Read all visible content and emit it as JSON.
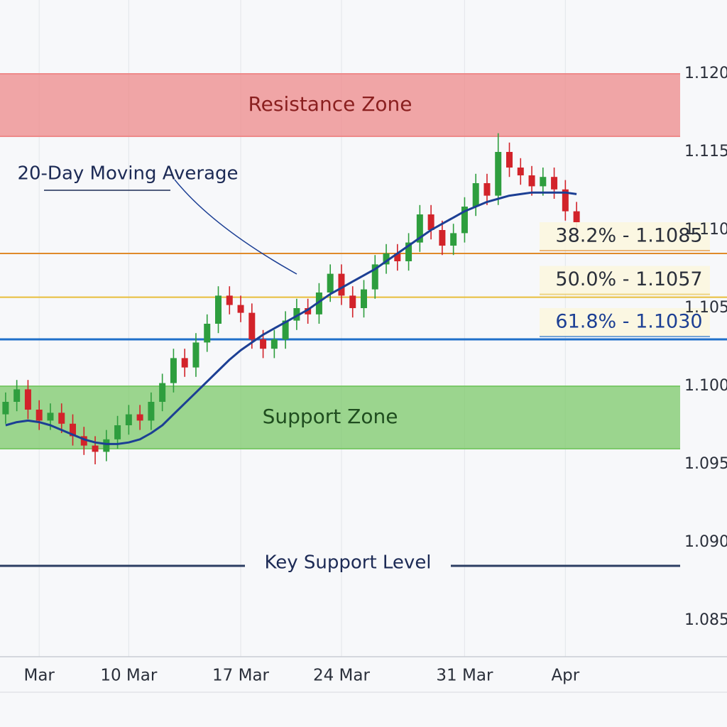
{
  "chart_data": {
    "type": "candlestick",
    "categories": [
      null,
      null,
      null,
      "Mar",
      null,
      null,
      null,
      null,
      null,
      null,
      null,
      "10 Mar",
      null,
      null,
      null,
      null,
      null,
      null,
      null,
      null,
      null,
      "17 Mar",
      null,
      null,
      null,
      null,
      null,
      null,
      null,
      null,
      "24 Mar",
      null,
      null,
      null,
      null,
      null,
      null,
      null,
      null,
      null,
      null,
      "31 Mar",
      null,
      null,
      null,
      null,
      null,
      null,
      null,
      null,
      "Apr",
      null
    ],
    "open": [
      1.0982,
      1.099,
      1.0998,
      1.0985,
      1.0978,
      1.0983,
      1.0976,
      1.0968,
      1.0962,
      1.0958,
      1.0966,
      1.0975,
      1.0982,
      1.0978,
      1.099,
      1.1002,
      1.1018,
      1.1012,
      1.1028,
      1.104,
      1.1058,
      1.1052,
      1.1047,
      1.103,
      1.1024,
      1.103,
      1.1042,
      1.105,
      1.1046,
      1.106,
      1.1072,
      1.1058,
      1.105,
      1.1062,
      1.1078,
      1.1085,
      1.108,
      1.1092,
      1.111,
      1.11,
      1.109,
      1.1098,
      1.1115,
      1.113,
      1.1122,
      1.115,
      1.114,
      1.1135,
      1.1128,
      1.1134,
      1.1126,
      1.1112
    ],
    "high": [
      1.0996,
      1.1004,
      1.1004,
      1.0991,
      1.0989,
      1.0989,
      1.0982,
      1.0974,
      1.0968,
      1.0972,
      1.0981,
      1.0988,
      1.0988,
      1.0996,
      1.1008,
      1.1024,
      1.1024,
      1.1034,
      1.1046,
      1.1064,
      1.1064,
      1.1058,
      1.1053,
      1.1036,
      1.1036,
      1.1048,
      1.1056,
      1.1056,
      1.1066,
      1.1078,
      1.1078,
      1.1064,
      1.1068,
      1.1084,
      1.1091,
      1.1091,
      1.1098,
      1.1116,
      1.1116,
      1.1106,
      1.1104,
      1.1121,
      1.1136,
      1.1136,
      1.1162,
      1.1156,
      1.1146,
      1.1141,
      1.114,
      1.114,
      1.1132,
      1.1118
    ],
    "low": [
      1.0976,
      1.0984,
      1.0979,
      1.0972,
      1.0972,
      1.097,
      1.0962,
      1.0956,
      1.095,
      1.0952,
      1.096,
      1.0969,
      1.0972,
      1.0972,
      1.0984,
      1.0996,
      1.1006,
      1.1006,
      1.1022,
      1.1034,
      1.1046,
      1.1041,
      1.1024,
      1.1018,
      1.1018,
      1.1024,
      1.1036,
      1.104,
      1.104,
      1.1054,
      1.1052,
      1.1044,
      1.1044,
      1.1056,
      1.1072,
      1.1074,
      1.1074,
      1.1086,
      1.1094,
      1.1084,
      1.1084,
      1.1092,
      1.1109,
      1.1116,
      1.1116,
      1.1134,
      1.1129,
      1.1122,
      1.1122,
      1.112,
      1.1106,
      1.1096
    ],
    "close": [
      1.099,
      1.0998,
      1.0985,
      1.0978,
      1.0983,
      1.0976,
      1.0968,
      1.0962,
      1.0958,
      1.0966,
      1.0975,
      1.0982,
      1.0978,
      1.099,
      1.1002,
      1.1018,
      1.1012,
      1.1028,
      1.104,
      1.1058,
      1.1052,
      1.1047,
      1.103,
      1.1024,
      1.103,
      1.1042,
      1.105,
      1.1046,
      1.106,
      1.1072,
      1.1058,
      1.105,
      1.1062,
      1.1078,
      1.1085,
      1.108,
      1.1092,
      1.111,
      1.11,
      1.109,
      1.1098,
      1.1115,
      1.113,
      1.1122,
      1.115,
      1.114,
      1.1135,
      1.1128,
      1.1134,
      1.1126,
      1.1112,
      1.1105
    ],
    "up_color": "#2e9e3e",
    "down_color": "#d2232a",
    "moving_average": {
      "name": "20-Day Moving Average",
      "color": "#1c3f94",
      "values": [
        1.0975,
        1.0977,
        1.0978,
        1.0977,
        1.0975,
        1.0972,
        1.0969,
        1.0966,
        1.0964,
        1.0963,
        1.0963,
        1.0964,
        1.0966,
        1.097,
        1.0975,
        1.0982,
        1.0989,
        1.0996,
        1.1003,
        1.101,
        1.1017,
        1.1023,
        1.1028,
        1.1033,
        1.1037,
        1.1041,
        1.1045,
        1.1049,
        1.1054,
        1.1059,
        1.1063,
        1.1067,
        1.1071,
        1.1075,
        1.108,
        1.1085,
        1.109,
        1.1095,
        1.11,
        1.1104,
        1.1108,
        1.1112,
        1.1115,
        1.1118,
        1.112,
        1.1122,
        1.1123,
        1.1124,
        1.1124,
        1.1124,
        1.1124,
        1.1123
      ]
    },
    "zones": [
      {
        "label": "Resistance Zone",
        "range": [
          1.116,
          1.12
        ],
        "color": "#ee8a8a",
        "text_color": "#8a1f1f"
      },
      {
        "label": "Support Zone",
        "range": [
          1.096,
          1.1
        ],
        "color": "#7cc96a",
        "text_color": "#1f4d1f"
      }
    ],
    "levels": [
      {
        "label": "38.2% - 1.1085",
        "value": 1.1085,
        "color": "#e08a2a"
      },
      {
        "label": "50.0% - 1.1057",
        "value": 1.1057,
        "color": "#e8bf3a"
      },
      {
        "label": "61.8% - 1.1030",
        "value": 1.103,
        "color": "#1f6fc9"
      }
    ],
    "key_level": {
      "label": "Key Support Level",
      "value": 1.0885,
      "color": "#2c3e63"
    },
    "ylim": [
      1.082,
      1.122
    ],
    "yticks": [
      1.085,
      {
        "value": 1.09,
        "label": "1.090"
      },
      1.095,
      {
        "value": 1.1,
        "label": "1.100"
      },
      1.105,
      {
        "value": 1.11,
        "label": "1.110"
      },
      1.115,
      {
        "value": 1.12,
        "label": "1.120"
      }
    ],
    "grid": true
  }
}
